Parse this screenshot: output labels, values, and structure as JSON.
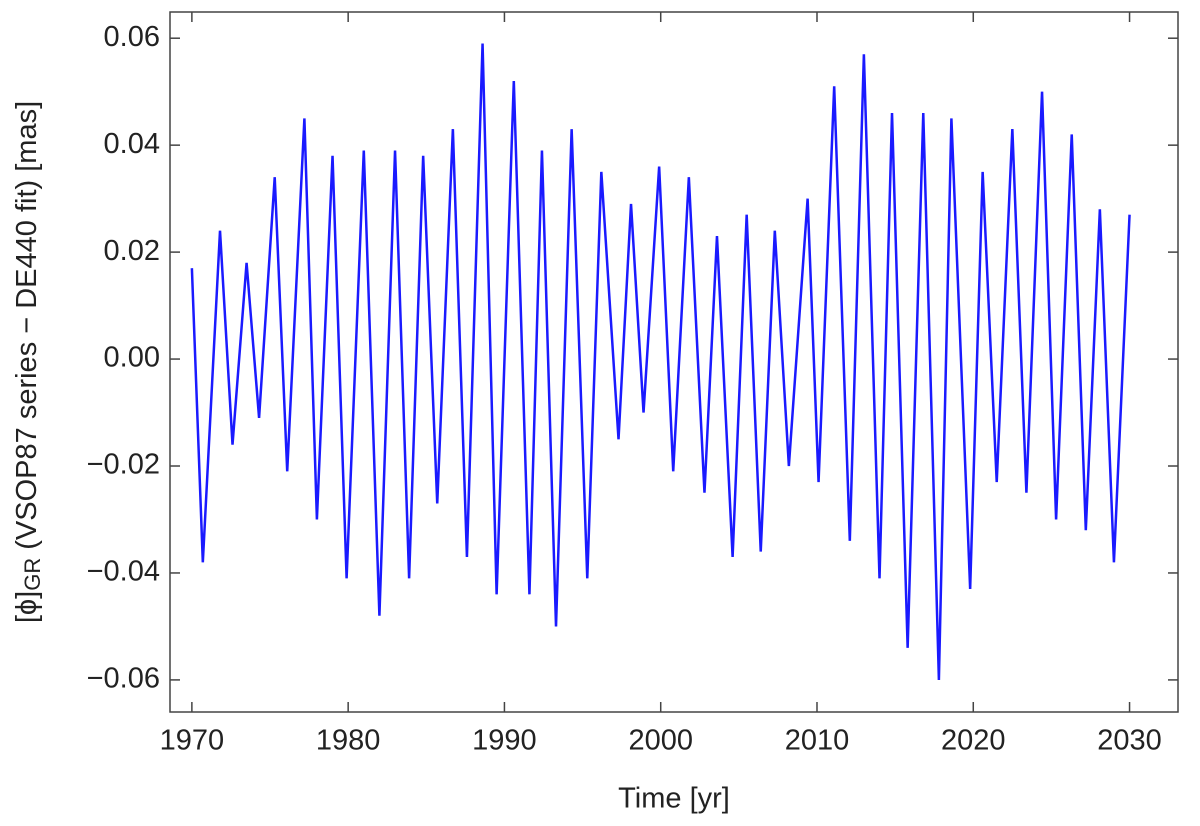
{
  "chart_data": {
    "type": "line",
    "xlabel": "Time [yr]",
    "ylabel": {
      "main": "[ϕ]",
      "sub": "GR",
      "rest": " (VSOP87 series − DE440 fit) [mas]"
    },
    "color": "#1a1aff",
    "x": [
      1970.0,
      1970.7,
      1971.8,
      1972.6,
      1973.5,
      1974.3,
      1975.3,
      1976.1,
      1977.2,
      1978.0,
      1979.0,
      1979.9,
      1981.0,
      1982.0,
      1983.0,
      1983.9,
      1984.8,
      1985.7,
      1986.7,
      1987.6,
      1988.6,
      1989.5,
      1990.6,
      1991.6,
      1992.4,
      1993.3,
      1994.3,
      1995.3,
      1996.2,
      1997.3,
      1998.1,
      1998.9,
      1999.9,
      2000.8,
      2001.8,
      2002.8,
      2003.6,
      2004.6,
      2005.5,
      2006.4,
      2007.3,
      2008.2,
      2009.4,
      2010.1,
      2011.1,
      2012.1,
      2013.0,
      2014.0,
      2014.8,
      2015.8,
      2016.8,
      2017.8,
      2018.6,
      2019.8,
      2020.6,
      2021.5,
      2022.5,
      2023.4,
      2024.4,
      2025.3,
      2026.3,
      2027.2,
      2028.1,
      2029.0,
      2030.0
    ],
    "values": [
      0.017,
      -0.038,
      0.024,
      -0.016,
      0.018,
      -0.011,
      0.034,
      -0.021,
      0.045,
      -0.03,
      0.038,
      -0.041,
      0.039,
      -0.048,
      0.039,
      -0.041,
      0.038,
      -0.027,
      0.043,
      -0.037,
      0.059,
      -0.044,
      0.052,
      -0.044,
      0.039,
      -0.05,
      0.043,
      -0.041,
      0.035,
      -0.015,
      0.029,
      -0.01,
      0.036,
      -0.021,
      0.034,
      -0.025,
      0.023,
      -0.037,
      0.027,
      -0.036,
      0.024,
      -0.02,
      0.03,
      -0.023,
      0.051,
      -0.034,
      0.057,
      -0.041,
      0.046,
      -0.054,
      0.046,
      -0.06,
      0.045,
      -0.043,
      0.035,
      -0.023,
      0.043,
      -0.025,
      0.05,
      -0.03,
      0.042,
      -0.032,
      0.028,
      -0.038,
      0.027
    ],
    "xlim": [
      1968.6,
      2033.1
    ],
    "ylim": [
      -0.066,
      0.0649
    ],
    "xticks": [
      1970,
      1980,
      1990,
      2000,
      2010,
      2020,
      2030
    ],
    "yticks": [
      {
        "value": -0.06,
        "label": "−0.06"
      },
      {
        "value": -0.04,
        "label": "−0.04"
      },
      {
        "value": -0.02,
        "label": "−0.02"
      },
      {
        "value": 0,
        "label": "0.00"
      },
      {
        "value": 0.02,
        "label": "0.02"
      },
      {
        "value": 0.04,
        "label": "0.04"
      },
      {
        "value": 0.06,
        "label": "0.06"
      }
    ]
  }
}
